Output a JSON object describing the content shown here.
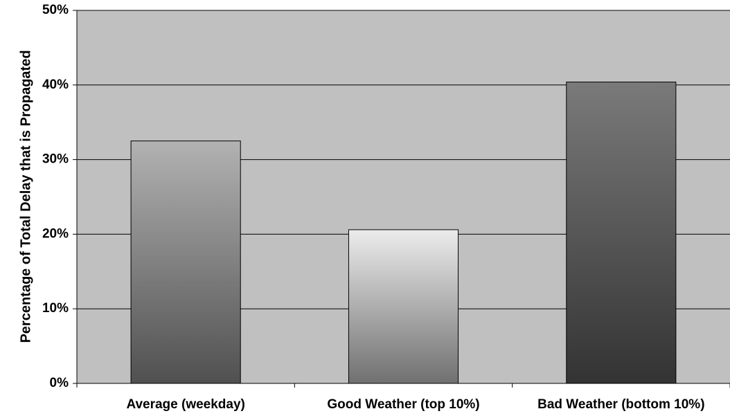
{
  "chart_data": {
    "type": "bar",
    "y_label": "Percentage of Total Delay that is Propagated",
    "categories": [
      "Average (weekday)",
      "Good Weather (top 10%)",
      "Bad Weather (bottom 10%)"
    ],
    "values": [
      32.5,
      20.6,
      40.4
    ],
    "gradients": [
      [
        "#b2b2b2",
        "#505050"
      ],
      [
        "#ececec",
        "#707070"
      ],
      [
        "#7a7a7a",
        "#333333"
      ]
    ],
    "ylim": [
      0,
      50
    ],
    "yticks": [
      {
        "value": 0,
        "label": "0%"
      },
      {
        "value": 10,
        "label": "10%"
      },
      {
        "value": 20,
        "label": "20%"
      },
      {
        "value": 30,
        "label": "30%"
      },
      {
        "value": 40,
        "label": "40%"
      },
      {
        "value": 50,
        "label": "50%"
      }
    ],
    "grid": true,
    "plot_background": "#c0c0c0"
  }
}
